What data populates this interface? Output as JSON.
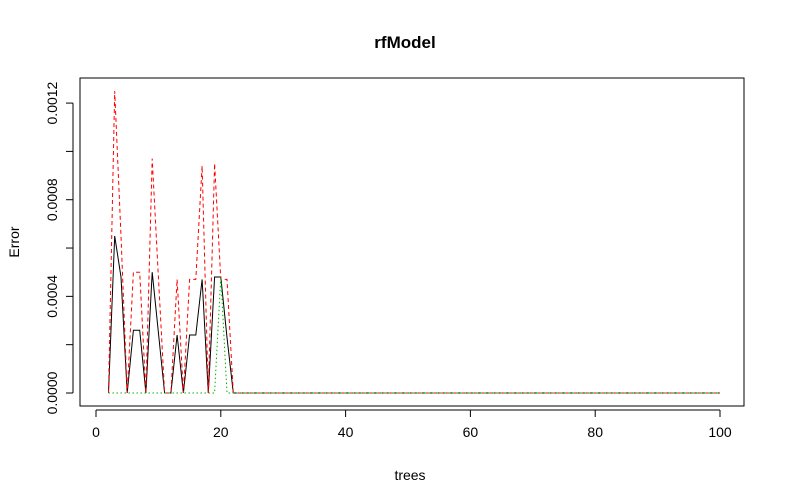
{
  "chart_data": {
    "type": "line",
    "title": "rfModel",
    "xlabel": "trees",
    "ylabel": "Error",
    "xlim": [
      1,
      100
    ],
    "ylim": [
      0,
      0.00125
    ],
    "x_ticks": [
      0,
      20,
      40,
      60,
      80,
      100
    ],
    "x_tick_labels": [
      "0",
      "20",
      "40",
      "60",
      "80",
      "100"
    ],
    "y_ticks": [
      0,
      0.0004,
      0.0008,
      0.0012
    ],
    "y_tick_labels": [
      "0.0000",
      "0.0004",
      "0.0008",
      "0.0012"
    ],
    "y_minor_ticks": [
      0.0002,
      0.0006,
      0.001
    ],
    "grid": false,
    "series": [
      {
        "color": "#000000",
        "dash": "solid",
        "points": [
          [
            2,
            0
          ],
          [
            3,
            0.00065
          ],
          [
            4,
            0.00048
          ],
          [
            5,
            0
          ],
          [
            6,
            0.00026
          ],
          [
            7,
            0.00026
          ],
          [
            8,
            0
          ],
          [
            9,
            0.0005
          ],
          [
            10,
            0.00025
          ],
          [
            11,
            0
          ],
          [
            12,
            0
          ],
          [
            13,
            0.00024
          ],
          [
            14,
            0
          ],
          [
            15,
            0.00024
          ],
          [
            16,
            0.00024
          ],
          [
            17,
            0.00047
          ],
          [
            18,
            0
          ],
          [
            19,
            0.00048
          ],
          [
            20,
            0.00048
          ],
          [
            21,
            0.00023
          ],
          [
            22,
            0
          ],
          [
            100,
            0
          ]
        ]
      },
      {
        "color": "#ff0000",
        "dash": "dashed",
        "points": [
          [
            2,
            0
          ],
          [
            3,
            0.00125
          ],
          [
            4,
            0.00065
          ],
          [
            5,
            0
          ],
          [
            6,
            0.0005
          ],
          [
            7,
            0.0005
          ],
          [
            8,
            0
          ],
          [
            9,
            0.00097
          ],
          [
            10,
            0.00048
          ],
          [
            11,
            0
          ],
          [
            12,
            0
          ],
          [
            13,
            0.00047
          ],
          [
            14,
            0
          ],
          [
            15,
            0.00047
          ],
          [
            16,
            0.00047
          ],
          [
            17,
            0.00094
          ],
          [
            18,
            0
          ],
          [
            19,
            0.00095
          ],
          [
            20,
            0.00047
          ],
          [
            21,
            0.00047
          ],
          [
            22,
            0
          ],
          [
            100,
            0
          ]
        ]
      },
      {
        "color": "#00b000",
        "dash": "dotted",
        "points": [
          [
            2,
            0
          ],
          [
            19,
            0
          ],
          [
            20,
            0.00048
          ],
          [
            21,
            0
          ],
          [
            100,
            0
          ]
        ]
      }
    ]
  }
}
